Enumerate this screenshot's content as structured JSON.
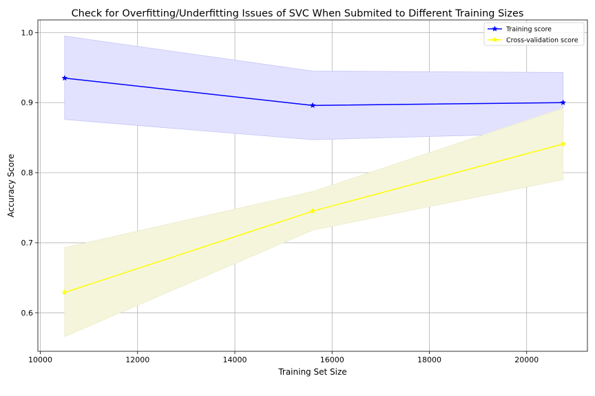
{
  "chart_data": {
    "type": "line",
    "title": "Check for Overfitting/Underfitting Issues of SVC When Submited to Different Training Sizes",
    "xlabel": "Training Set Size",
    "ylabel": "Accuracy Score",
    "xlim": [
      9950,
      21250
    ],
    "ylim": [
      0.545,
      1.018
    ],
    "xticks": [
      10000,
      12000,
      14000,
      16000,
      18000,
      20000
    ],
    "yticks": [
      0.6,
      0.7,
      0.8,
      0.9,
      1.0
    ],
    "xtick_labels": [
      "10000",
      "12000",
      "14000",
      "16000",
      "18000",
      "20000"
    ],
    "ytick_labels": [
      "0.6",
      "0.7",
      "0.8",
      "0.9",
      "1.0"
    ],
    "grid": true,
    "legend_position": "top-right",
    "x": [
      10500,
      15600,
      20750
    ],
    "series": [
      {
        "name": "Training score",
        "values": [
          0.935,
          0.896,
          0.9
        ],
        "lower": [
          0.876,
          0.847,
          0.857
        ],
        "upper": [
          0.995,
          0.945,
          0.943
        ],
        "color": "#0000ff",
        "band_color": "#e2e2ff",
        "band_stroke": "#c4c4f4",
        "marker": "star"
      },
      {
        "name": "Cross-validation score",
        "values": [
          0.629,
          0.745,
          0.841
        ],
        "lower": [
          0.566,
          0.718,
          0.79
        ],
        "upper": [
          0.693,
          0.773,
          0.892
        ],
        "color": "#ffff00",
        "band_color": "#f5f5dc",
        "band_stroke": "#ebebc8",
        "marker": "star"
      }
    ]
  }
}
